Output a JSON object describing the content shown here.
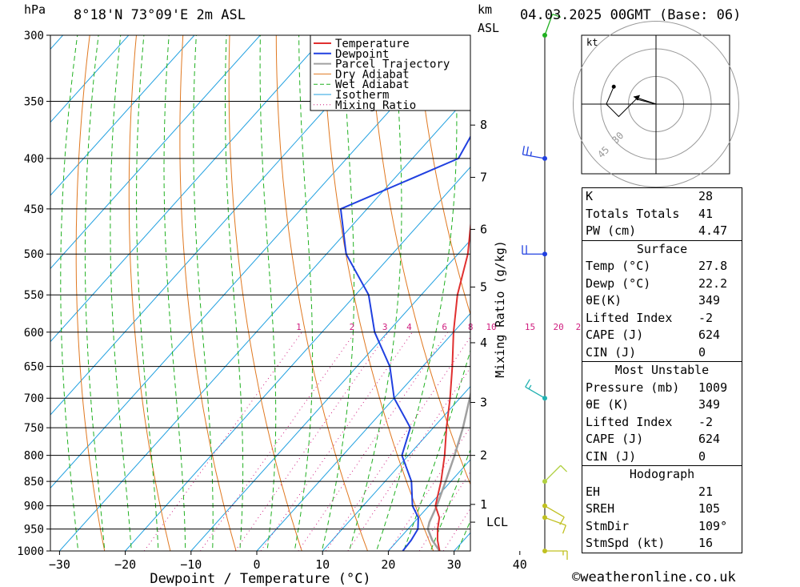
{
  "header": {
    "hpa_unit": "hPa",
    "location": "8°18'N 73°09'E 2m ASL",
    "km_unit": "km",
    "asl": "ASL",
    "datetime": "04.03.2025 00GMT (Base: 06)"
  },
  "chart_data": {
    "type": "skew-t",
    "xlabel": "Dewpoint / Temperature (°C)",
    "ylabel_right": "Mixing Ratio (g/kg)",
    "xlim": [
      -40,
      40
    ],
    "ylim_hpa": [
      1000,
      300
    ],
    "pressure_ticks": [
      300,
      350,
      400,
      450,
      500,
      550,
      600,
      650,
      700,
      750,
      800,
      850,
      900,
      950,
      1000
    ],
    "temp_ticks": [
      -30,
      -20,
      -10,
      0,
      10,
      20,
      30,
      40
    ],
    "km_ticks": [
      {
        "label": "8",
        "p": 370
      },
      {
        "label": "7",
        "p": 418
      },
      {
        "label": "6",
        "p": 472
      },
      {
        "label": "5",
        "p": 540
      },
      {
        "label": "4",
        "p": 615
      },
      {
        "label": "3",
        "p": 707
      },
      {
        "label": "2",
        "p": 800
      },
      {
        "label": "1",
        "p": 897
      },
      {
        "label": "LCL",
        "p": 935
      }
    ],
    "mixing_ratio_labels": [
      "1",
      "2",
      "3",
      "4",
      "6",
      "8",
      "10",
      "15",
      "20",
      "25"
    ],
    "mixing_ratio_values": [
      1,
      2,
      3,
      4,
      6,
      8,
      10,
      15,
      20,
      25
    ],
    "legend": [
      "Temperature",
      "Dewpoint",
      "Parcel Trajectory",
      "Dry Adiabat",
      "Wet Adiabat",
      "Isotherm",
      "Mixing Ratio"
    ],
    "colors": {
      "temperature": "#e03030",
      "dewpoint": "#2040e0",
      "parcel": "#a0a0a0",
      "dry_adiabat": "#e07820",
      "wet_adiabat": "#20b020",
      "isotherm": "#20a0e0",
      "mixing_ratio": "#d02080"
    },
    "temperature": [
      {
        "p": 1000,
        "t": 27.8
      },
      {
        "p": 975,
        "t": 26.0
      },
      {
        "p": 950,
        "t": 24.5
      },
      {
        "p": 925,
        "t": 23.2
      },
      {
        "p": 900,
        "t": 21.0
      },
      {
        "p": 850,
        "t": 18.5
      },
      {
        "p": 800,
        "t": 15.5
      },
      {
        "p": 750,
        "t": 12.0
      },
      {
        "p": 700,
        "t": 8.5
      },
      {
        "p": 650,
        "t": 4.5
      },
      {
        "p": 600,
        "t": 0.0
      },
      {
        "p": 550,
        "t": -4.5
      },
      {
        "p": 500,
        "t": -8.5
      },
      {
        "p": 450,
        "t": -14.0
      },
      {
        "p": 400,
        "t": -21.0
      },
      {
        "p": 370,
        "t": -25.5
      }
    ],
    "dewpoint": [
      {
        "p": 1000,
        "t": 22.2
      },
      {
        "p": 975,
        "t": 22.0
      },
      {
        "p": 950,
        "t": 21.5
      },
      {
        "p": 925,
        "t": 20.0
      },
      {
        "p": 900,
        "t": 17.5
      },
      {
        "p": 850,
        "t": 14.0
      },
      {
        "p": 800,
        "t": 9.0
      },
      {
        "p": 750,
        "t": 6.5
      },
      {
        "p": 700,
        "t": 0.0
      },
      {
        "p": 650,
        "t": -5.0
      },
      {
        "p": 600,
        "t": -12.0
      },
      {
        "p": 550,
        "t": -18.0
      },
      {
        "p": 500,
        "t": -27.0
      },
      {
        "p": 450,
        "t": -34.0
      },
      {
        "p": 400,
        "t": -23.0
      },
      {
        "p": 350,
        "t": -26.0
      },
      {
        "p": 300,
        "t": -33.0
      }
    ],
    "parcel": [
      {
        "p": 1000,
        "t": 27.8
      },
      {
        "p": 975,
        "t": 25.2
      },
      {
        "p": 950,
        "t": 23.0
      },
      {
        "p": 935,
        "t": 22.3
      },
      {
        "p": 900,
        "t": 21.2
      },
      {
        "p": 850,
        "t": 19.2
      },
      {
        "p": 800,
        "t": 17.0
      },
      {
        "p": 750,
        "t": 14.5
      },
      {
        "p": 700,
        "t": 11.5
      },
      {
        "p": 650,
        "t": 8.2
      },
      {
        "p": 600,
        "t": 4.5
      },
      {
        "p": 550,
        "t": 0.0
      },
      {
        "p": 500,
        "t": -4.5
      },
      {
        "p": 450,
        "t": -10.0
      },
      {
        "p": 400,
        "t": -16.5
      },
      {
        "p": 370,
        "t": -21.0
      }
    ],
    "wind_barbs": [
      {
        "p": 300,
        "dir": 20,
        "spd": 10,
        "color": "#20b020"
      },
      {
        "p": 400,
        "dir": 280,
        "spd": 25,
        "color": "#2040e0"
      },
      {
        "p": 500,
        "dir": 270,
        "spd": 20,
        "color": "#2040e0"
      },
      {
        "p": 700,
        "dir": 300,
        "spd": 15,
        "color": "#20b0b0"
      },
      {
        "p": 850,
        "dir": 45,
        "spd": 10,
        "color": "#b0d040"
      },
      {
        "p": 900,
        "dir": 120,
        "spd": 10,
        "color": "#c0c020"
      },
      {
        "p": 925,
        "dir": 110,
        "spd": 10,
        "color": "#c0c020"
      },
      {
        "p": 1000,
        "dir": 90,
        "spd": 15,
        "color": "#c0c020"
      }
    ]
  },
  "hodograph": {
    "unit": "kt",
    "ring_labels": [
      "30",
      "45"
    ],
    "points": [
      {
        "u": 0,
        "v": 0
      },
      {
        "u": -8,
        "v": 2
      },
      {
        "u": -15,
        "v": -5
      },
      {
        "u": -20,
        "v": 0
      },
      {
        "u": -17,
        "v": 7
      }
    ],
    "storm_motion": {
      "u": -9,
      "v": 3
    }
  },
  "stats": {
    "indices": [
      {
        "label": "K",
        "value": "28"
      },
      {
        "label": "Totals Totals",
        "value": "41"
      },
      {
        "label": "PW (cm)",
        "value": "4.47"
      }
    ],
    "surface": {
      "title": "Surface",
      "rows": [
        {
          "label": "Temp (°C)",
          "value": "27.8"
        },
        {
          "label": "Dewp (°C)",
          "value": "22.2"
        },
        {
          "label": "θE(K)",
          "value": "349"
        },
        {
          "label": "Lifted Index",
          "value": "-2"
        },
        {
          "label": "CAPE (J)",
          "value": "624"
        },
        {
          "label": "CIN (J)",
          "value": "0"
        }
      ]
    },
    "most_unstable": {
      "title": "Most Unstable",
      "rows": [
        {
          "label": "Pressure (mb)",
          "value": "1009"
        },
        {
          "label": "θE (K)",
          "value": "349"
        },
        {
          "label": "Lifted Index",
          "value": "-2"
        },
        {
          "label": "CAPE (J)",
          "value": "624"
        },
        {
          "label": "CIN (J)",
          "value": "0"
        }
      ]
    },
    "hodograph": {
      "title": "Hodograph",
      "rows": [
        {
          "label": "EH",
          "value": "21"
        },
        {
          "label": "SREH",
          "value": "105"
        },
        {
          "label": "StmDir",
          "value": "109°"
        },
        {
          "label": "StmSpd (kt)",
          "value": "16"
        }
      ]
    }
  },
  "footer": {
    "copyright": "©weatheronline.co.uk"
  }
}
